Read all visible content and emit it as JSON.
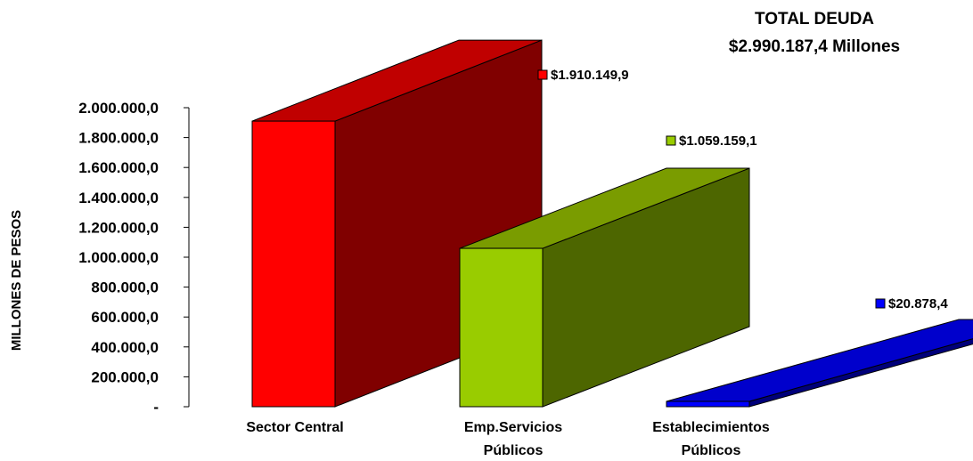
{
  "chart_data": {
    "type": "bar",
    "title": "TOTAL DEUDA",
    "subtitle": "$2.990.187,4 Millones",
    "ylabel": "MILLONES DE PESOS",
    "xlabel": "",
    "ylim": [
      0,
      2000000
    ],
    "y_ticks": [
      {
        "value": 0,
        "label": "-"
      },
      {
        "value": 200000,
        "label": "200.000,0"
      },
      {
        "value": 400000,
        "label": "400.000,0"
      },
      {
        "value": 600000,
        "label": "600.000,0"
      },
      {
        "value": 800000,
        "label": "800.000,0"
      },
      {
        "value": 1000000,
        "label": "1.000.000,0"
      },
      {
        "value": 1200000,
        "label": "1.200.000,0"
      },
      {
        "value": 1400000,
        "label": "1.400.000,0"
      },
      {
        "value": 1600000,
        "label": "1.600.000,0"
      },
      {
        "value": 1800000,
        "label": "1.800.000,0"
      },
      {
        "value": 2000000,
        "label": "2.000.000,0"
      }
    ],
    "categories": [
      {
        "lines": [
          "Sector Central"
        ]
      },
      {
        "lines": [
          "Emp.Servicios",
          "Públicos"
        ]
      },
      {
        "lines": [
          "Establecimientos",
          "Públicos"
        ]
      }
    ],
    "values": [
      1910149.9,
      1059159.1,
      20878.4
    ],
    "value_labels": [
      "$1.910.149,9",
      "$1.059.159,1",
      "$20.878,4"
    ],
    "colors": [
      {
        "front": "#ff0000",
        "side": "#800000",
        "top": "#c00000"
      },
      {
        "front": "#99cc00",
        "side": "#4d6600",
        "top": "#7a9c00"
      },
      {
        "front": "#0000ff",
        "side": "#00007a",
        "top": "#0000cc"
      }
    ],
    "grid": false,
    "legend": "none"
  }
}
